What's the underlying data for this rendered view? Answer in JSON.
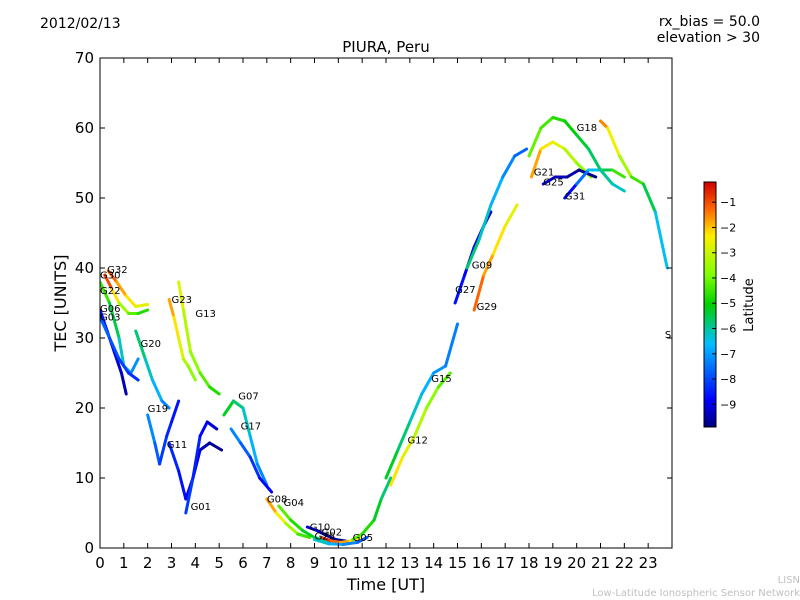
{
  "header": {
    "date": "2012/02/13",
    "rx_bias": "rx_bias = 50.0",
    "elevation": "elevation > 30"
  },
  "footer": {
    "line1": "LISN",
    "line2": "Low-Latitude Ionospheric Sensor Network"
  },
  "chart_data": {
    "type": "scatter",
    "title": "PIURA, Peru",
    "xlabel": "Time [UT]",
    "ylabel": "TEC [UNITS]",
    "xlim": [
      0,
      24
    ],
    "ylim": [
      0,
      70
    ],
    "xticks": [
      0,
      1,
      2,
      3,
      4,
      5,
      6,
      7,
      8,
      9,
      10,
      11,
      12,
      13,
      14,
      15,
      16,
      17,
      18,
      19,
      20,
      21,
      22,
      23
    ],
    "yticks": [
      0,
      10,
      20,
      30,
      40,
      50,
      60,
      70
    ],
    "colorbar": {
      "label": "Latitude",
      "range": [
        -9.9,
        -0.2
      ],
      "ticks": [
        -1,
        -2,
        -3,
        -4,
        -5,
        -6,
        -7,
        -8,
        -9
      ]
    },
    "series": [
      {
        "name": "G30",
        "points": [
          [
            0.2,
            39
          ],
          [
            0.5,
            37
          ],
          [
            0.8,
            35
          ],
          [
            1.2,
            33.5
          ],
          [
            1.6,
            33.5
          ],
          [
            2,
            34
          ]
        ],
        "lat": [
          -0.5,
          -1.5,
          -3,
          -4,
          -4.5,
          -5
        ]
      },
      {
        "name": "G32",
        "points": [
          [
            0.35,
            39.6
          ],
          [
            0.7,
            38
          ],
          [
            1.1,
            36
          ],
          [
            1.5,
            34.5
          ],
          [
            2.0,
            34.8
          ]
        ],
        "lat": [
          -1,
          -1.5,
          -2,
          -2.5,
          -2.8
        ]
      },
      {
        "name": "G22",
        "points": [
          [
            0,
            38
          ],
          [
            0.4,
            35
          ],
          [
            0.8,
            30
          ],
          [
            1.0,
            26
          ],
          [
            1.3,
            25
          ],
          [
            1.6,
            27
          ]
        ],
        "lat": [
          -4,
          -5,
          -6,
          -6.5,
          -7,
          -7.3
        ]
      },
      {
        "name": "G06",
        "points": [
          [
            0,
            34
          ],
          [
            0.3,
            31
          ],
          [
            0.6,
            28
          ],
          [
            0.9,
            25
          ],
          [
            1.1,
            22
          ]
        ],
        "lat": [
          -8.5,
          -8.8,
          -9,
          -9.3,
          -9.6
        ]
      },
      {
        "name": "G03",
        "points": [
          [
            0,
            33
          ],
          [
            0.4,
            30
          ],
          [
            0.8,
            27
          ],
          [
            1.2,
            25
          ],
          [
            1.6,
            24
          ]
        ],
        "lat": [
          -7.5,
          -7.8,
          -8,
          -8.2,
          -8.4
        ]
      },
      {
        "name": "G20",
        "points": [
          [
            1.5,
            31
          ],
          [
            1.9,
            27
          ],
          [
            2.2,
            24
          ],
          [
            2.6,
            21
          ],
          [
            2.9,
            20
          ]
        ],
        "lat": [
          -5.5,
          -6,
          -6.5,
          -7,
          -7.5
        ]
      },
      {
        "name": "G23",
        "points": [
          [
            2.9,
            35.5
          ],
          [
            3.1,
            33
          ],
          [
            3.3,
            30
          ],
          [
            3.5,
            27
          ],
          [
            3.7,
            26
          ],
          [
            4.0,
            24
          ]
        ],
        "lat": [
          -1.5,
          -2,
          -2.5,
          -3,
          -3.5,
          -4
        ]
      },
      {
        "name": "G13",
        "points": [
          [
            3.3,
            38
          ],
          [
            3.5,
            34
          ],
          [
            3.8,
            28
          ],
          [
            4.2,
            25
          ],
          [
            4.6,
            23
          ],
          [
            5.0,
            22
          ]
        ],
        "lat": [
          -2.5,
          -3,
          -3.5,
          -4,
          -4.5,
          -5
        ]
      },
      {
        "name": "G19",
        "points": [
          [
            2.0,
            19
          ],
          [
            2.3,
            15
          ],
          [
            2.5,
            12
          ],
          [
            2.8,
            16
          ],
          [
            3.0,
            18
          ],
          [
            3.3,
            21
          ]
        ],
        "lat": [
          -7,
          -7.5,
          -8,
          -8.3,
          -8.5,
          -8.7
        ]
      },
      {
        "name": "G11",
        "points": [
          [
            2.9,
            15
          ],
          [
            3.3,
            11
          ],
          [
            3.6,
            7
          ],
          [
            3.9,
            10
          ],
          [
            4.2,
            14
          ],
          [
            4.6,
            15
          ],
          [
            5.1,
            14
          ]
        ],
        "lat": [
          -8.3,
          -8.5,
          -8.8,
          -9,
          -9.3,
          -9.6,
          -9.8
        ]
      },
      {
        "name": "G01",
        "points": [
          [
            3.6,
            5
          ],
          [
            3.9,
            10
          ],
          [
            4.2,
            16
          ],
          [
            4.5,
            18
          ],
          [
            4.9,
            17
          ]
        ],
        "lat": [
          -8,
          -8.3,
          -8.6,
          -9,
          -9.3
        ]
      },
      {
        "name": "G07",
        "points": [
          [
            5.2,
            19
          ],
          [
            5.6,
            21
          ],
          [
            6.0,
            20
          ],
          [
            6.3,
            16
          ],
          [
            6.6,
            12
          ],
          [
            7.0,
            9
          ]
        ],
        "lat": [
          -5,
          -5.5,
          -6,
          -6.5,
          -7,
          -7.5
        ]
      },
      {
        "name": "G17",
        "points": [
          [
            5.5,
            17
          ],
          [
            5.9,
            15
          ],
          [
            6.3,
            13
          ],
          [
            6.7,
            10
          ],
          [
            7.2,
            8
          ]
        ],
        "lat": [
          -7,
          -7.5,
          -8,
          -8.5,
          -9
        ]
      },
      {
        "name": "G08",
        "points": [
          [
            7.0,
            7
          ],
          [
            7.4,
            5
          ],
          [
            7.8,
            3.5
          ],
          [
            8.3,
            2
          ],
          [
            8.8,
            1.5
          ]
        ],
        "lat": [
          -1.5,
          -2,
          -3,
          -4,
          -5
        ]
      },
      {
        "name": "G04",
        "points": [
          [
            7.5,
            6
          ],
          [
            8.0,
            4
          ],
          [
            8.5,
            2.5
          ],
          [
            9.0,
            1.5
          ],
          [
            9.5,
            1
          ],
          [
            10.0,
            1
          ]
        ],
        "lat": [
          -4,
          -4.5,
          -5,
          -5.5,
          -6,
          -6.5
        ]
      },
      {
        "name": "G10",
        "points": [
          [
            8.7,
            3
          ],
          [
            9.1,
            2.5
          ],
          [
            9.5,
            1.8
          ],
          [
            9.9,
            1.2
          ],
          [
            10.3,
            1
          ]
        ],
        "lat": [
          -9,
          -9.3,
          -9.5,
          -9.7,
          -9.8
        ]
      },
      {
        "name": "G02",
        "points": [
          [
            9.3,
            1.5
          ],
          [
            9.7,
            1
          ],
          [
            10.1,
            0.8
          ],
          [
            10.5,
            1
          ],
          [
            10.9,
            1.5
          ]
        ],
        "lat": [
          -0.5,
          -1,
          -1.5,
          -2,
          -2.5
        ]
      },
      {
        "name": "G26",
        "points": [
          [
            9.0,
            1.2
          ],
          [
            9.6,
            0.6
          ],
          [
            10.2,
            0.5
          ],
          [
            10.8,
            0.8
          ],
          [
            11.2,
            1.5
          ]
        ],
        "lat": [
          -6,
          -6.5,
          -7,
          -7.5,
          -8
        ]
      },
      {
        "name": "G05",
        "points": [
          [
            10.6,
            1.2
          ],
          [
            11.0,
            2
          ],
          [
            11.5,
            4
          ],
          [
            11.8,
            7
          ],
          [
            12.2,
            10
          ]
        ],
        "lat": [
          -4,
          -4.5,
          -5,
          -5.5,
          -6
        ]
      },
      {
        "name": "G12",
        "points": [
          [
            12.2,
            9
          ],
          [
            12.7,
            13
          ],
          [
            13.2,
            16
          ],
          [
            13.7,
            20
          ],
          [
            14.2,
            23
          ],
          [
            14.7,
            25
          ]
        ],
        "lat": [
          -2,
          -2.5,
          -3,
          -3.5,
          -4,
          -4.5
        ]
      },
      {
        "name": "G15",
        "points": [
          [
            12.0,
            10
          ],
          [
            12.5,
            14
          ],
          [
            13.0,
            18
          ],
          [
            13.5,
            22
          ],
          [
            14.0,
            25
          ],
          [
            14.5,
            26
          ],
          [
            15.0,
            32
          ]
        ],
        "lat": [
          -5,
          -5.5,
          -6,
          -6.5,
          -7,
          -7.2,
          -7.5
        ]
      },
      {
        "name": "G27",
        "points": [
          [
            14.9,
            35
          ],
          [
            15.3,
            39
          ],
          [
            15.7,
            43
          ],
          [
            16.1,
            46
          ],
          [
            16.4,
            48
          ]
        ],
        "lat": [
          -8.5,
          -8.8,
          -9,
          -9.3,
          -9.6
        ]
      },
      {
        "name": "G09",
        "points": [
          [
            15.4,
            40
          ],
          [
            15.9,
            44
          ],
          [
            16.4,
            49
          ],
          [
            16.9,
            53
          ],
          [
            17.4,
            56
          ],
          [
            17.9,
            57
          ]
        ],
        "lat": [
          -5.5,
          -6,
          -6.5,
          -7,
          -7.5,
          -7.8
        ]
      },
      {
        "name": "G29",
        "points": [
          [
            15.7,
            34
          ],
          [
            16.1,
            39
          ],
          [
            16.5,
            42
          ],
          [
            17.0,
            46
          ],
          [
            17.5,
            49
          ]
        ],
        "lat": [
          -1,
          -1.5,
          -2,
          -2.5,
          -2.8
        ]
      },
      {
        "name": "G21",
        "points": [
          [
            18.1,
            53
          ],
          [
            18.5,
            57
          ],
          [
            19.0,
            58
          ],
          [
            19.5,
            57
          ],
          [
            20.0,
            55
          ],
          [
            20.6,
            53
          ]
        ],
        "lat": [
          -1.5,
          -2,
          -2.5,
          -3,
          -3.5,
          -4
        ]
      },
      {
        "name": "G25",
        "points": [
          [
            18.6,
            52
          ],
          [
            19.1,
            53
          ],
          [
            19.6,
            53
          ],
          [
            20.1,
            54
          ],
          [
            20.8,
            53
          ]
        ],
        "lat": [
          -9,
          -9.3,
          -9.5,
          -9.7,
          -9.8
        ]
      },
      {
        "name": "G31",
        "points": [
          [
            19.5,
            50
          ],
          [
            20.0,
            52
          ],
          [
            20.5,
            54
          ],
          [
            21.0,
            54
          ],
          [
            21.5,
            54
          ],
          [
            22.0,
            53
          ]
        ],
        "lat": [
          -9.5,
          -8,
          -7,
          -6,
          -5,
          -4
        ]
      },
      {
        "name": "G18",
        "points": [
          [
            18.0,
            56
          ],
          [
            18.5,
            60
          ],
          [
            19.0,
            61.5
          ],
          [
            19.5,
            61
          ],
          [
            20.0,
            59
          ],
          [
            20.5,
            57
          ],
          [
            21.0,
            54
          ],
          [
            21.5,
            52
          ],
          [
            22.0,
            51
          ]
        ],
        "lat": [
          -4,
          -4.3,
          -4.6,
          -4.9,
          -5.2,
          -5.5,
          -5.8,
          -6.1,
          -6.4
        ]
      },
      {
        "name": "S",
        "points": [
          [
            21.0,
            61
          ],
          [
            21.3,
            60
          ],
          [
            21.8,
            56
          ],
          [
            22.3,
            53
          ],
          [
            22.8,
            52
          ],
          [
            23.3,
            48
          ],
          [
            23.8,
            40
          ]
        ],
        "lat": [
          -1,
          -2,
          -3,
          -4,
          -5,
          -6,
          -7
        ]
      }
    ],
    "labels": [
      {
        "text": "G30",
        "x": 0.0,
        "y": 38.5
      },
      {
        "text": "G32",
        "x": 0.3,
        "y": 39.3
      },
      {
        "text": "G22",
        "x": 0.0,
        "y": 36.3
      },
      {
        "text": "G06",
        "x": 0.0,
        "y": 33.7
      },
      {
        "text": "G03",
        "x": 0.0,
        "y": 32.5
      },
      {
        "text": "G20",
        "x": 1.7,
        "y": 28.7
      },
      {
        "text": "G23",
        "x": 3.0,
        "y": 35.0
      },
      {
        "text": "G13",
        "x": 4.0,
        "y": 33.0
      },
      {
        "text": "G19",
        "x": 2.0,
        "y": 19.4
      },
      {
        "text": "G11",
        "x": 2.8,
        "y": 14.3
      },
      {
        "text": "G01",
        "x": 3.8,
        "y": 5.4
      },
      {
        "text": "G07",
        "x": 5.8,
        "y": 21.2
      },
      {
        "text": "G17",
        "x": 5.9,
        "y": 16.9
      },
      {
        "text": "G08",
        "x": 7.0,
        "y": 6.5
      },
      {
        "text": "G04",
        "x": 7.7,
        "y": 6.0
      },
      {
        "text": "G10",
        "x": 8.8,
        "y": 2.5
      },
      {
        "text": "G02",
        "x": 9.3,
        "y": 1.8
      },
      {
        "text": "G26",
        "x": 9.0,
        "y": 1.2
      },
      {
        "text": "G05",
        "x": 10.6,
        "y": 1.0
      },
      {
        "text": "G12",
        "x": 12.9,
        "y": 14.9
      },
      {
        "text": "G15",
        "x": 13.9,
        "y": 23.7
      },
      {
        "text": "G27",
        "x": 14.9,
        "y": 36.4
      },
      {
        "text": "G09",
        "x": 15.6,
        "y": 39.9
      },
      {
        "text": "G29",
        "x": 15.8,
        "y": 34.0
      },
      {
        "text": "G21",
        "x": 18.2,
        "y": 53.2
      },
      {
        "text": "G25",
        "x": 18.6,
        "y": 51.8
      },
      {
        "text": "G31",
        "x": 19.5,
        "y": 49.8
      },
      {
        "text": "G18",
        "x": 20.0,
        "y": 59.6
      },
      {
        "text": "S",
        "x": 23.7,
        "y": 30.0
      }
    ]
  }
}
